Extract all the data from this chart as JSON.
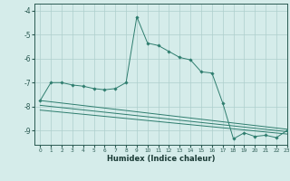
{
  "xlabel": "Humidex (Indice chaleur)",
  "ylabel": "",
  "background_color": "#d5ecea",
  "grid_color": "#aecfcc",
  "line_color": "#2e7d6e",
  "xlim": [
    -0.5,
    23
  ],
  "ylim": [
    -9.6,
    -3.7
  ],
  "yticks": [
    -9,
    -8,
    -7,
    -6,
    -5,
    -4
  ],
  "xticks": [
    0,
    1,
    2,
    3,
    4,
    5,
    6,
    7,
    8,
    9,
    10,
    11,
    12,
    13,
    14,
    15,
    16,
    17,
    18,
    19,
    20,
    21,
    22,
    23
  ],
  "series_main": {
    "x": [
      0,
      1,
      2,
      3,
      4,
      5,
      6,
      7,
      8,
      9,
      10,
      11,
      12,
      13,
      14,
      15,
      16,
      17,
      18,
      19,
      20,
      21,
      22,
      23
    ],
    "y": [
      -7.75,
      -7.0,
      -7.0,
      -7.1,
      -7.15,
      -7.25,
      -7.3,
      -7.25,
      -7.0,
      -4.25,
      -5.35,
      -5.45,
      -5.7,
      -5.95,
      -6.05,
      -6.55,
      -6.6,
      -7.85,
      -9.35,
      -9.1,
      -9.25,
      -9.2,
      -9.3,
      -9.0
    ]
  },
  "series_lines": [
    {
      "x": [
        0,
        23
      ],
      "y": [
        -7.75,
        -8.95
      ]
    },
    {
      "x": [
        0,
        23
      ],
      "y": [
        -7.95,
        -9.05
      ]
    },
    {
      "x": [
        0,
        23
      ],
      "y": [
        -8.15,
        -9.15
      ]
    }
  ]
}
